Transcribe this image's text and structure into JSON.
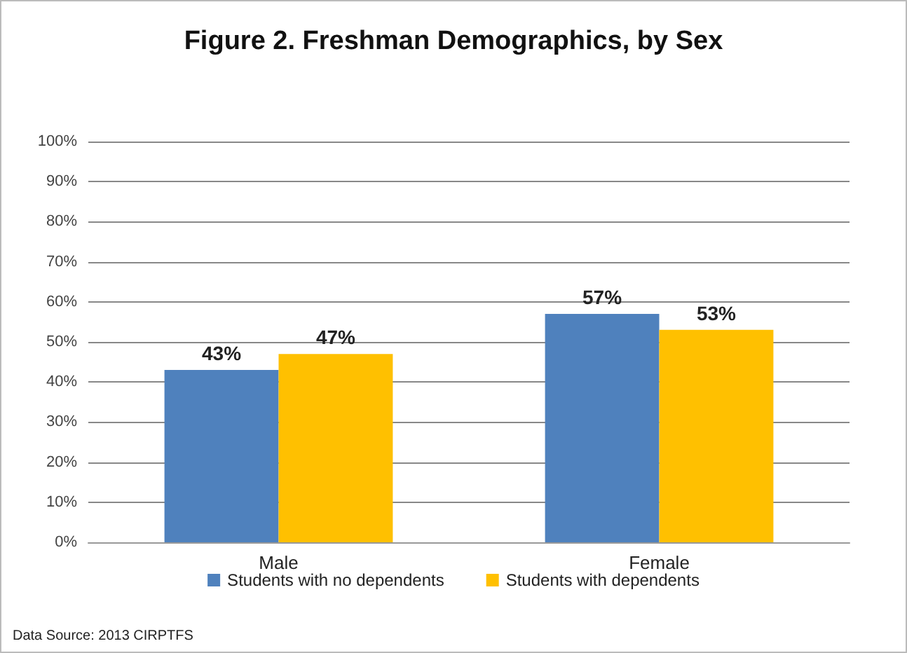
{
  "chart_data": {
    "type": "bar",
    "title": "Figure 2. Freshman Demographics, by Sex",
    "categories": [
      "Male",
      "Female"
    ],
    "series": [
      {
        "name": "Students with no dependents",
        "color": "#4f81bd",
        "values": [
          43,
          57
        ],
        "value_labels": [
          "43%",
          "57%"
        ]
      },
      {
        "name": "Students with dependents",
        "color": "#ffc000",
        "values": [
          47,
          53
        ],
        "value_labels": [
          "47%",
          "53%"
        ]
      }
    ],
    "ylim": [
      0,
      100
    ],
    "yticks": [
      {
        "value": 0,
        "label": "0%"
      },
      {
        "value": 10,
        "label": "10%"
      },
      {
        "value": 20,
        "label": "20%"
      },
      {
        "value": 30,
        "label": "30%"
      },
      {
        "value": 40,
        "label": "40%"
      },
      {
        "value": 50,
        "label": "50%"
      },
      {
        "value": 60,
        "label": "60%"
      },
      {
        "value": 70,
        "label": "70%"
      },
      {
        "value": 80,
        "label": "80%"
      },
      {
        "value": 90,
        "label": "90%"
      },
      {
        "value": 100,
        "label": "100%"
      }
    ],
    "grid": "y",
    "legend": "bottom",
    "annotations": [
      "Data Source: 2013 CIRPTFS"
    ]
  }
}
